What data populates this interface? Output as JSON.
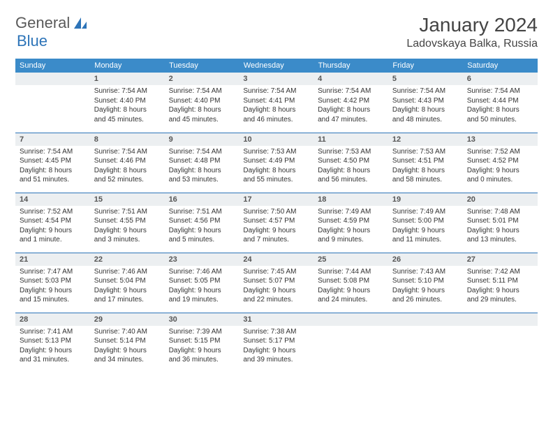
{
  "logo": {
    "text1": "General",
    "text2": "Blue"
  },
  "title": "January 2024",
  "location": "Ladovskaya Balka, Russia",
  "colors": {
    "header_bg": "#3b8bc9",
    "header_text": "#ffffff",
    "daynum_bg": "#eceff1",
    "rule": "#2d74b8",
    "logo_gray": "#5a5a5a",
    "logo_blue": "#2d74b8"
  },
  "day_headers": [
    "Sunday",
    "Monday",
    "Tuesday",
    "Wednesday",
    "Thursday",
    "Friday",
    "Saturday"
  ],
  "weeks": [
    [
      {
        "n": "",
        "lines": []
      },
      {
        "n": "1",
        "lines": [
          "Sunrise: 7:54 AM",
          "Sunset: 4:40 PM",
          "Daylight: 8 hours",
          "and 45 minutes."
        ]
      },
      {
        "n": "2",
        "lines": [
          "Sunrise: 7:54 AM",
          "Sunset: 4:40 PM",
          "Daylight: 8 hours",
          "and 45 minutes."
        ]
      },
      {
        "n": "3",
        "lines": [
          "Sunrise: 7:54 AM",
          "Sunset: 4:41 PM",
          "Daylight: 8 hours",
          "and 46 minutes."
        ]
      },
      {
        "n": "4",
        "lines": [
          "Sunrise: 7:54 AM",
          "Sunset: 4:42 PM",
          "Daylight: 8 hours",
          "and 47 minutes."
        ]
      },
      {
        "n": "5",
        "lines": [
          "Sunrise: 7:54 AM",
          "Sunset: 4:43 PM",
          "Daylight: 8 hours",
          "and 48 minutes."
        ]
      },
      {
        "n": "6",
        "lines": [
          "Sunrise: 7:54 AM",
          "Sunset: 4:44 PM",
          "Daylight: 8 hours",
          "and 50 minutes."
        ]
      }
    ],
    [
      {
        "n": "7",
        "lines": [
          "Sunrise: 7:54 AM",
          "Sunset: 4:45 PM",
          "Daylight: 8 hours",
          "and 51 minutes."
        ]
      },
      {
        "n": "8",
        "lines": [
          "Sunrise: 7:54 AM",
          "Sunset: 4:46 PM",
          "Daylight: 8 hours",
          "and 52 minutes."
        ]
      },
      {
        "n": "9",
        "lines": [
          "Sunrise: 7:54 AM",
          "Sunset: 4:48 PM",
          "Daylight: 8 hours",
          "and 53 minutes."
        ]
      },
      {
        "n": "10",
        "lines": [
          "Sunrise: 7:53 AM",
          "Sunset: 4:49 PM",
          "Daylight: 8 hours",
          "and 55 minutes."
        ]
      },
      {
        "n": "11",
        "lines": [
          "Sunrise: 7:53 AM",
          "Sunset: 4:50 PM",
          "Daylight: 8 hours",
          "and 56 minutes."
        ]
      },
      {
        "n": "12",
        "lines": [
          "Sunrise: 7:53 AM",
          "Sunset: 4:51 PM",
          "Daylight: 8 hours",
          "and 58 minutes."
        ]
      },
      {
        "n": "13",
        "lines": [
          "Sunrise: 7:52 AM",
          "Sunset: 4:52 PM",
          "Daylight: 9 hours",
          "and 0 minutes."
        ]
      }
    ],
    [
      {
        "n": "14",
        "lines": [
          "Sunrise: 7:52 AM",
          "Sunset: 4:54 PM",
          "Daylight: 9 hours",
          "and 1 minute."
        ]
      },
      {
        "n": "15",
        "lines": [
          "Sunrise: 7:51 AM",
          "Sunset: 4:55 PM",
          "Daylight: 9 hours",
          "and 3 minutes."
        ]
      },
      {
        "n": "16",
        "lines": [
          "Sunrise: 7:51 AM",
          "Sunset: 4:56 PM",
          "Daylight: 9 hours",
          "and 5 minutes."
        ]
      },
      {
        "n": "17",
        "lines": [
          "Sunrise: 7:50 AM",
          "Sunset: 4:57 PM",
          "Daylight: 9 hours",
          "and 7 minutes."
        ]
      },
      {
        "n": "18",
        "lines": [
          "Sunrise: 7:49 AM",
          "Sunset: 4:59 PM",
          "Daylight: 9 hours",
          "and 9 minutes."
        ]
      },
      {
        "n": "19",
        "lines": [
          "Sunrise: 7:49 AM",
          "Sunset: 5:00 PM",
          "Daylight: 9 hours",
          "and 11 minutes."
        ]
      },
      {
        "n": "20",
        "lines": [
          "Sunrise: 7:48 AM",
          "Sunset: 5:01 PM",
          "Daylight: 9 hours",
          "and 13 minutes."
        ]
      }
    ],
    [
      {
        "n": "21",
        "lines": [
          "Sunrise: 7:47 AM",
          "Sunset: 5:03 PM",
          "Daylight: 9 hours",
          "and 15 minutes."
        ]
      },
      {
        "n": "22",
        "lines": [
          "Sunrise: 7:46 AM",
          "Sunset: 5:04 PM",
          "Daylight: 9 hours",
          "and 17 minutes."
        ]
      },
      {
        "n": "23",
        "lines": [
          "Sunrise: 7:46 AM",
          "Sunset: 5:05 PM",
          "Daylight: 9 hours",
          "and 19 minutes."
        ]
      },
      {
        "n": "24",
        "lines": [
          "Sunrise: 7:45 AM",
          "Sunset: 5:07 PM",
          "Daylight: 9 hours",
          "and 22 minutes."
        ]
      },
      {
        "n": "25",
        "lines": [
          "Sunrise: 7:44 AM",
          "Sunset: 5:08 PM",
          "Daylight: 9 hours",
          "and 24 minutes."
        ]
      },
      {
        "n": "26",
        "lines": [
          "Sunrise: 7:43 AM",
          "Sunset: 5:10 PM",
          "Daylight: 9 hours",
          "and 26 minutes."
        ]
      },
      {
        "n": "27",
        "lines": [
          "Sunrise: 7:42 AM",
          "Sunset: 5:11 PM",
          "Daylight: 9 hours",
          "and 29 minutes."
        ]
      }
    ],
    [
      {
        "n": "28",
        "lines": [
          "Sunrise: 7:41 AM",
          "Sunset: 5:13 PM",
          "Daylight: 9 hours",
          "and 31 minutes."
        ]
      },
      {
        "n": "29",
        "lines": [
          "Sunrise: 7:40 AM",
          "Sunset: 5:14 PM",
          "Daylight: 9 hours",
          "and 34 minutes."
        ]
      },
      {
        "n": "30",
        "lines": [
          "Sunrise: 7:39 AM",
          "Sunset: 5:15 PM",
          "Daylight: 9 hours",
          "and 36 minutes."
        ]
      },
      {
        "n": "31",
        "lines": [
          "Sunrise: 7:38 AM",
          "Sunset: 5:17 PM",
          "Daylight: 9 hours",
          "and 39 minutes."
        ]
      },
      {
        "n": "",
        "lines": []
      },
      {
        "n": "",
        "lines": []
      },
      {
        "n": "",
        "lines": []
      }
    ]
  ]
}
